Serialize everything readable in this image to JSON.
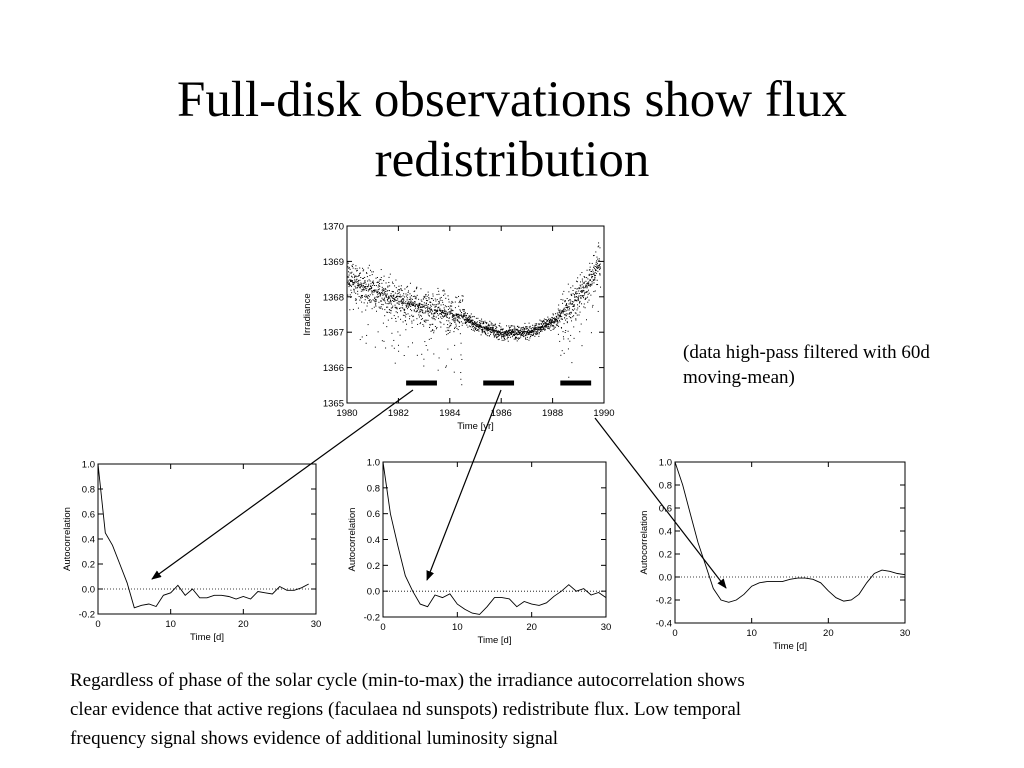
{
  "slide": {
    "title_line1": "Full-disk observations show flux",
    "title_line2": "redistribution",
    "note_line1": "(data high-pass filtered with 60d",
    "note_line2": "moving-mean)",
    "caption_line1": "Regardless of phase of the solar cycle (min-to-max) the irradiance autocorrelation shows",
    "caption_line2": "clear evidence that active regions (faculaea nd sunspots) redistribute flux. Low temporal",
    "caption_line3": "frequency signal shows evidence of additional luminosity signal"
  },
  "chart_data": [
    {
      "type": "scatter",
      "title": "",
      "xlabel": "Time [yr]",
      "ylabel": "Irradiance",
      "xlim": [
        1980,
        1990
      ],
      "ylim": [
        1365,
        1370
      ],
      "xticks": [
        1980,
        1982,
        1984,
        1986,
        1988,
        1990
      ],
      "yticks": [
        1365,
        1366,
        1367,
        1368,
        1369,
        1370
      ],
      "trend": [
        [
          1980,
          1368.5
        ],
        [
          1981,
          1368.2
        ],
        [
          1982,
          1367.9
        ],
        [
          1983,
          1367.7
        ],
        [
          1984,
          1367.5
        ],
        [
          1984.5,
          1367.5
        ],
        [
          1985,
          1367.2
        ],
        [
          1986,
          1367.0
        ],
        [
          1987,
          1367.0
        ],
        [
          1988,
          1367.3
        ],
        [
          1989,
          1368.0
        ],
        [
          1989.8,
          1368.9
        ]
      ],
      "markers_years": [
        [
          1982.3,
          1983.5
        ],
        [
          1985.3,
          1986.5
        ],
        [
          1988.3,
          1989.5
        ]
      ],
      "grid": false
    },
    {
      "type": "line",
      "xlabel": "Time [d]",
      "ylabel": "Autocorrelation",
      "xlim": [
        0,
        30
      ],
      "ylim": [
        -0.2,
        1.0
      ],
      "xticks": [
        0,
        10,
        20,
        30
      ],
      "yticks": [
        -0.2,
        0.0,
        0.2,
        0.4,
        0.6,
        0.8,
        1.0
      ],
      "x": [
        0,
        1,
        2,
        3,
        4,
        5,
        6,
        7,
        8,
        9,
        10,
        11,
        12,
        13,
        14,
        15,
        16,
        17,
        18,
        19,
        20,
        21,
        22,
        23,
        24,
        25,
        26,
        27,
        28,
        29
      ],
      "y": [
        1.0,
        0.45,
        0.35,
        0.2,
        0.05,
        -0.15,
        -0.13,
        -0.12,
        -0.14,
        -0.05,
        -0.03,
        0.03,
        -0.05,
        0.0,
        -0.07,
        -0.07,
        -0.05,
        -0.05,
        -0.06,
        -0.08,
        -0.06,
        -0.08,
        -0.02,
        -0.03,
        -0.04,
        0.02,
        -0.01,
        -0.01,
        0.01,
        0.04
      ],
      "reference_line": 0.0
    },
    {
      "type": "line",
      "xlabel": "Time [d]",
      "ylabel": "Autocorrelation",
      "xlim": [
        0,
        30
      ],
      "ylim": [
        -0.2,
        1.0
      ],
      "xticks": [
        0,
        10,
        20,
        30
      ],
      "yticks": [
        -0.2,
        0.0,
        0.2,
        0.4,
        0.6,
        0.8,
        1.0
      ],
      "x": [
        0,
        1,
        2,
        3,
        4,
        5,
        6,
        7,
        8,
        9,
        10,
        11,
        12,
        13,
        14,
        15,
        16,
        17,
        18,
        19,
        20,
        21,
        22,
        23,
        24,
        25,
        26,
        27,
        28,
        29,
        30
      ],
      "y": [
        1.0,
        0.6,
        0.35,
        0.12,
        0.0,
        -0.1,
        -0.12,
        -0.03,
        -0.05,
        -0.02,
        -0.1,
        -0.14,
        -0.17,
        -0.18,
        -0.12,
        -0.05,
        -0.05,
        -0.06,
        -0.12,
        -0.08,
        -0.1,
        -0.11,
        -0.09,
        -0.04,
        0.0,
        0.05,
        0.0,
        0.02,
        -0.03,
        -0.01,
        -0.05
      ],
      "reference_line": 0.0
    },
    {
      "type": "line",
      "xlabel": "Time [d]",
      "ylabel": "Autocorrelation",
      "xlim": [
        0,
        30
      ],
      "ylim": [
        -0.4,
        1.0
      ],
      "xticks": [
        0,
        10,
        20,
        30
      ],
      "yticks": [
        -0.4,
        -0.2,
        0.0,
        0.2,
        0.4,
        0.6,
        0.8,
        1.0
      ],
      "x": [
        0,
        1,
        2,
        3,
        4,
        5,
        6,
        7,
        8,
        9,
        10,
        11,
        12,
        13,
        14,
        15,
        16,
        17,
        18,
        19,
        20,
        21,
        22,
        23,
        24,
        25,
        26,
        27,
        28,
        29,
        30
      ],
      "y": [
        1.0,
        0.8,
        0.55,
        0.3,
        0.1,
        -0.1,
        -0.2,
        -0.22,
        -0.2,
        -0.15,
        -0.08,
        -0.05,
        -0.04,
        -0.04,
        -0.04,
        -0.02,
        -0.01,
        -0.01,
        -0.02,
        -0.05,
        -0.12,
        -0.18,
        -0.21,
        -0.2,
        -0.15,
        -0.05,
        0.03,
        0.06,
        0.05,
        0.03,
        0.02
      ],
      "reference_line": 0.0
    }
  ]
}
